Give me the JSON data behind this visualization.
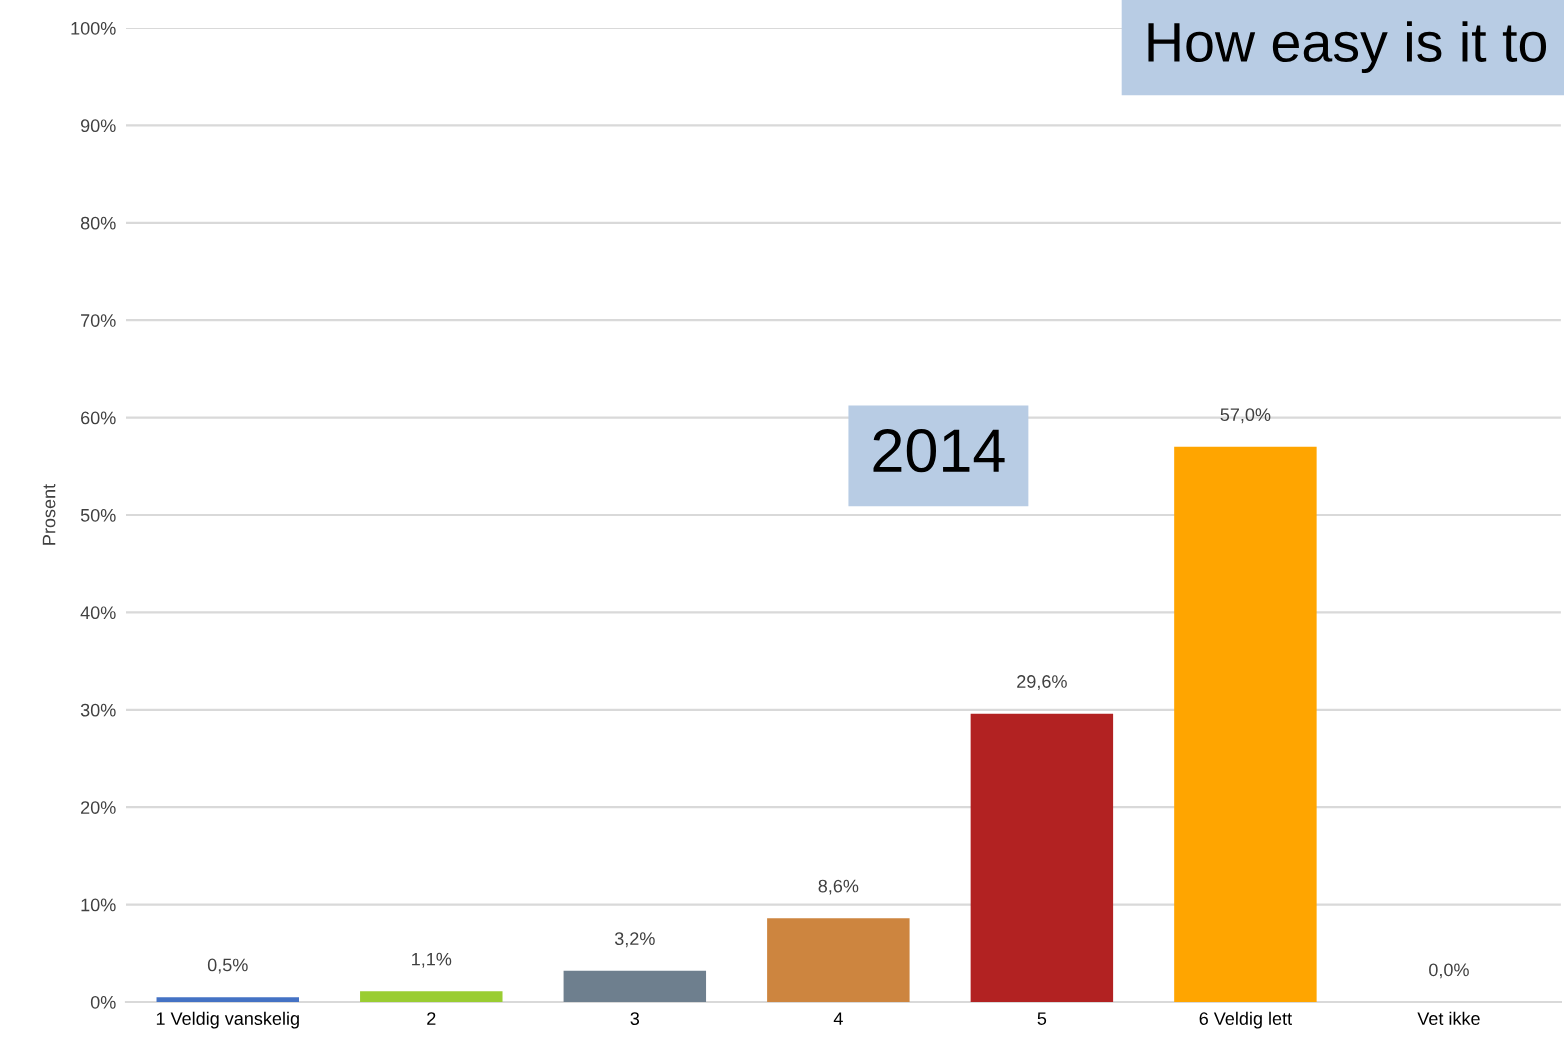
{
  "chart_data": {
    "type": "bar",
    "categories": [
      "1 Veldig vanskelig",
      "2",
      "3",
      "4",
      "5",
      "6 Veldig lett",
      "Vet ikke"
    ],
    "values": [
      0.5,
      1.1,
      3.2,
      8.6,
      29.6,
      57.0,
      0.0
    ],
    "colors": [
      "#4472c4",
      "#9acd32",
      "#6e7f8e",
      "#cd853f",
      "#b22222",
      "#ffa500",
      "#a9a9a9"
    ],
    "value_labels": [
      "0,5%",
      "1,1%",
      "3,2%",
      "8,6%",
      "29,6%",
      "57,0%",
      "0,0%"
    ],
    "ylabel": "Prosent",
    "ylim": [
      0,
      100
    ],
    "yticks": [
      {
        "value": 0,
        "label": "0%"
      },
      {
        "value": 10,
        "label": "10%"
      },
      {
        "value": 20,
        "label": "20%"
      },
      {
        "value": 30,
        "label": "30%"
      },
      {
        "value": 40,
        "label": "40%"
      },
      {
        "value": 50,
        "label": "50%"
      },
      {
        "value": 60,
        "label": "60%"
      },
      {
        "value": 70,
        "label": "70%"
      },
      {
        "value": 80,
        "label": "80%"
      },
      {
        "value": 90,
        "label": "90%"
      },
      {
        "value": 100,
        "label": "100%"
      }
    ],
    "grid": "y",
    "annotations": [
      "How easy is it to",
      "2014"
    ]
  }
}
